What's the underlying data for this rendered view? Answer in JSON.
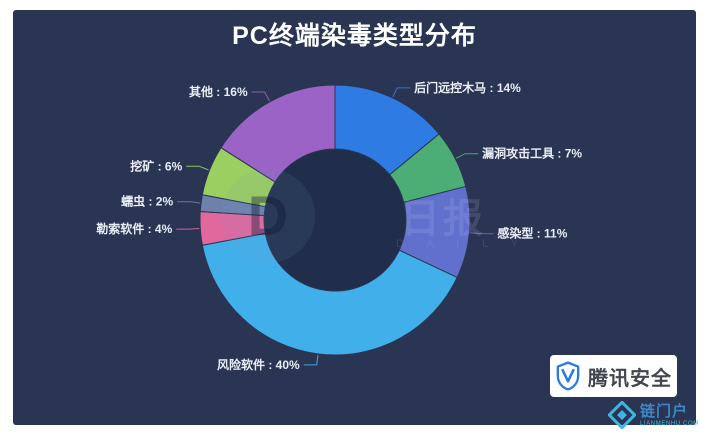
{
  "title": "PC终端染毒类型分布",
  "chart_data": {
    "type": "pie",
    "subtype": "donut",
    "title": "PC终端染毒类型分布",
    "categories": [
      "后门远控木马",
      "漏洞攻击工具",
      "感染型",
      "风险软件",
      "勒索软件",
      "蠕虫",
      "挖矿",
      "其他"
    ],
    "values": [
      14,
      7,
      11,
      40,
      4,
      2,
      6,
      16
    ],
    "unit": "%",
    "colors": [
      "#2d7be3",
      "#4cae74",
      "#6170cd",
      "#41afe9",
      "#e0689d",
      "#6e81ad",
      "#9bcf5f",
      "#9a63c5"
    ],
    "label_format": "{name} : {value}%",
    "start_angle_deg": 0,
    "direction": "clockwise",
    "legend_position": "none",
    "background": "#2a3553",
    "hole_color": "#212e4b"
  },
  "branding": {
    "logo_text": "腾讯安全",
    "shield_icon": "tencent-shield-icon",
    "shield_color": "#2b7be0"
  },
  "watermarks": {
    "center_letter": "D",
    "center_text": "日报",
    "center_subtext": "D A I L Y",
    "corner_text": "链门户",
    "corner_subtext": "LIANMENHU.COM"
  }
}
